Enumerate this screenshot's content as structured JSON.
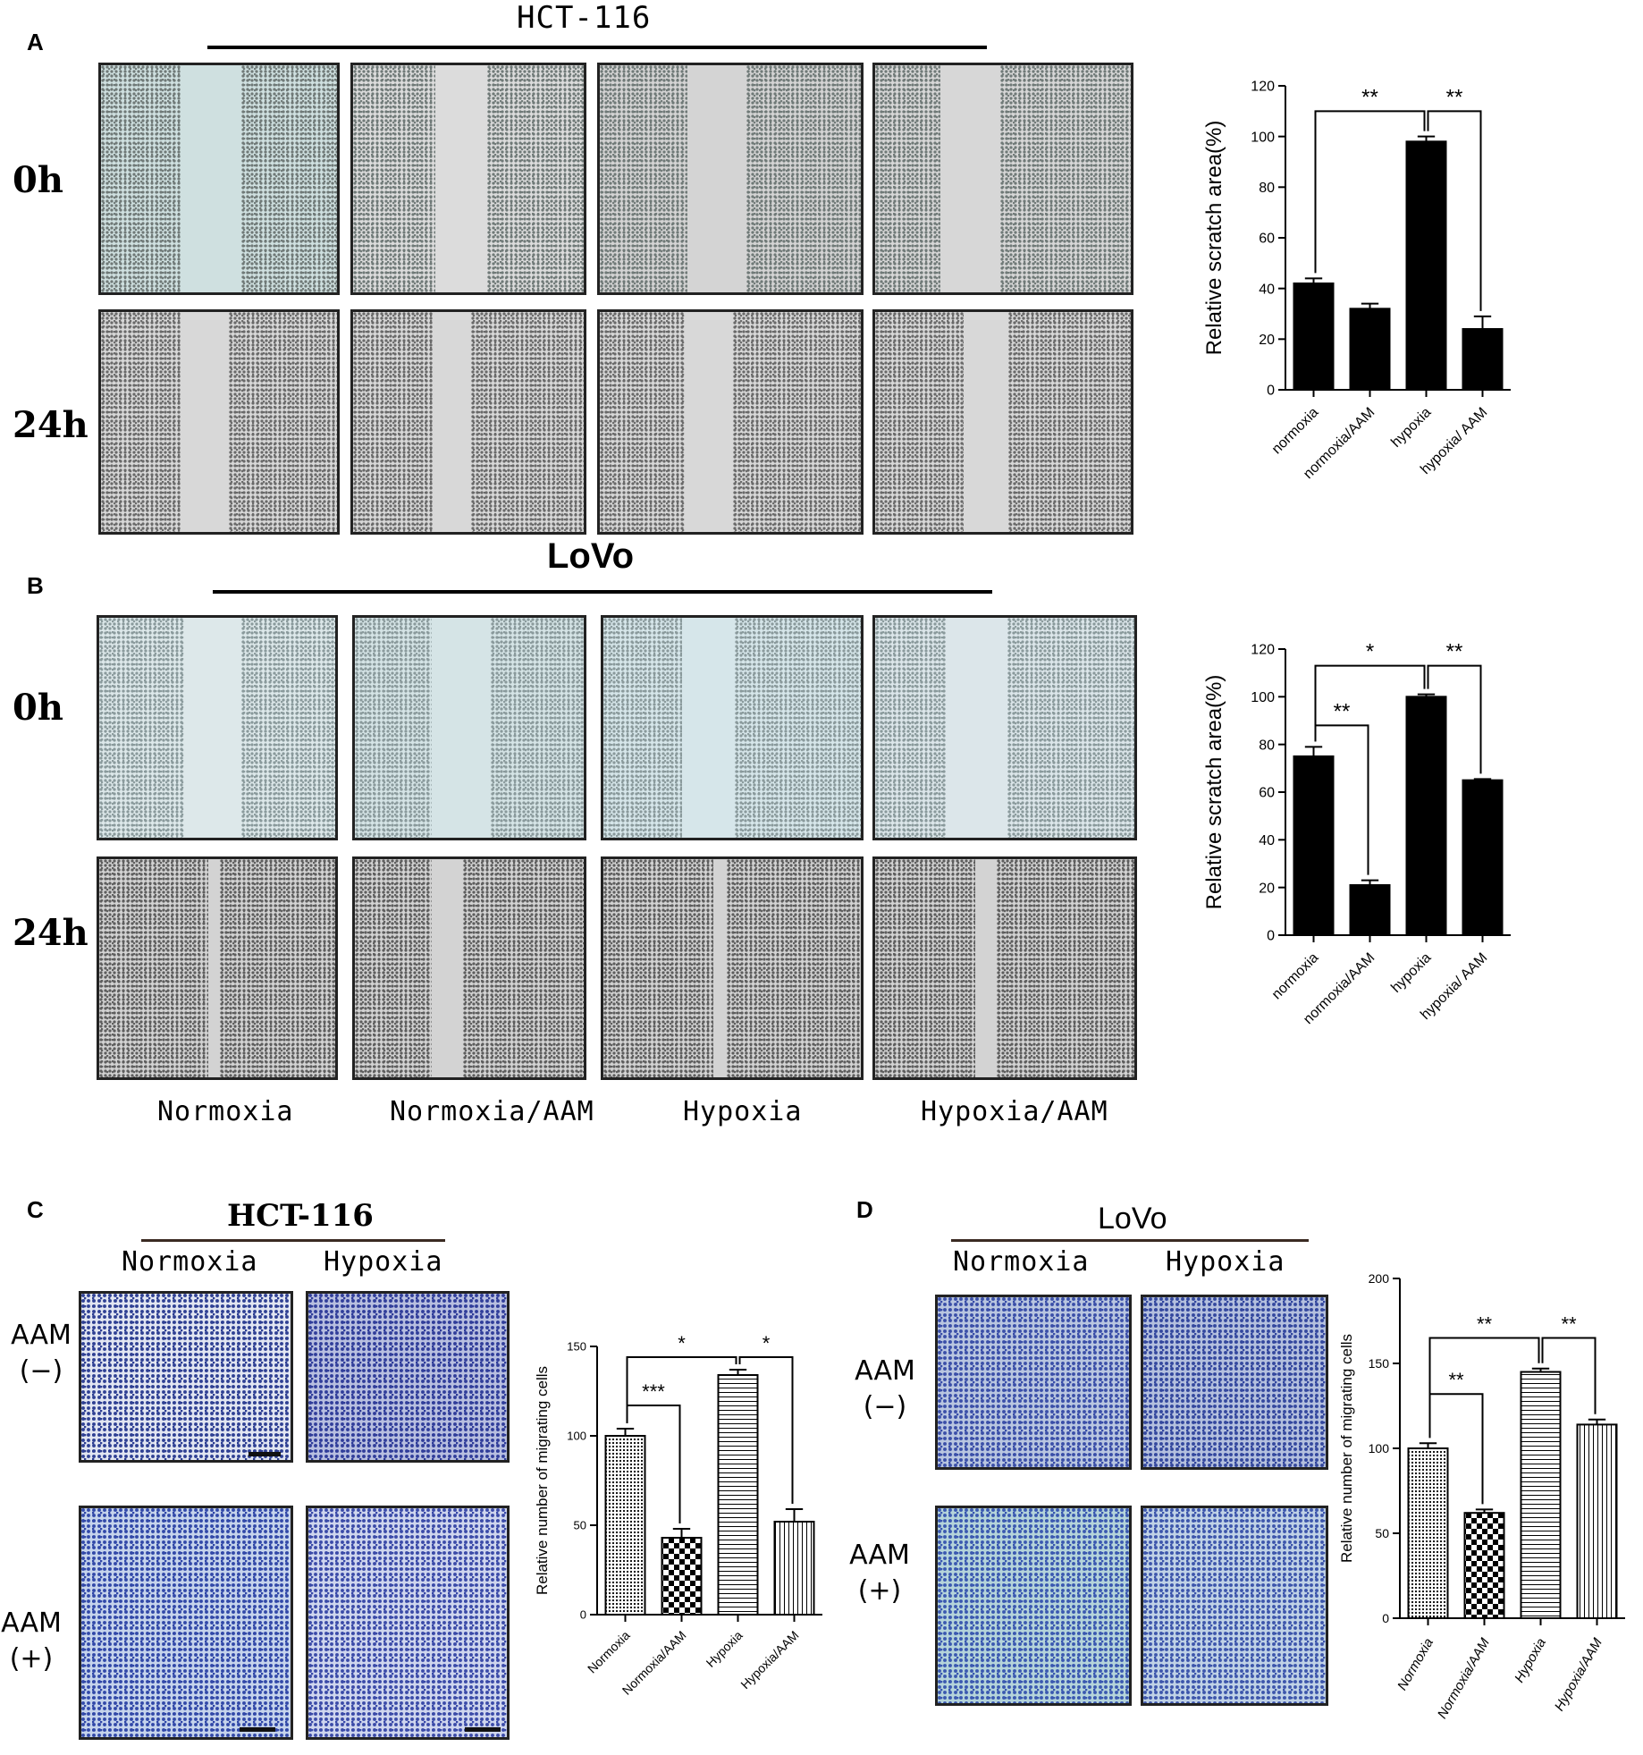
{
  "panels": {
    "A": {
      "letter": "A",
      "title": "HCT-116",
      "rows": [
        "0h",
        "24h"
      ]
    },
    "B": {
      "letter": "B",
      "title": "LoVo",
      "rows": [
        "0h",
        "24h"
      ],
      "conditions": [
        "Normoxia",
        "Normoxia/AAM",
        "Hypoxia",
        "Hypoxia/AAM"
      ]
    },
    "C": {
      "letter": "C",
      "title": "HCT-116",
      "columns": [
        "Normoxia",
        "Hypoxia"
      ],
      "rows": [
        {
          "line1": "AAM",
          "line2": "(−)"
        },
        {
          "line1": "AAM",
          "line2": "(+)"
        }
      ]
    },
    "D": {
      "letter": "D",
      "title": "LoVo",
      "columns": [
        "Normoxia",
        "Hypoxia"
      ],
      "rows": [
        {
          "line1": "AAM",
          "line2": "(−)"
        },
        {
          "line1": "AAM",
          "line2": "(+)"
        }
      ]
    }
  },
  "chart_data": [
    {
      "id": "chartA",
      "type": "bar",
      "categories": [
        "normoxia",
        "normoxia/AAM",
        "hypoxia",
        "hypoxia/ AAM"
      ],
      "values": [
        42,
        32,
        98,
        24
      ],
      "errors": [
        2,
        2,
        2,
        5
      ],
      "ylabel": "Relative scratch area(%)",
      "ylim": [
        0,
        120
      ],
      "yticks": [
        0,
        20,
        40,
        60,
        80,
        100,
        120
      ],
      "patterns": [
        "solid",
        "solid",
        "solid",
        "solid"
      ],
      "significance": [
        {
          "from": 0,
          "to": 2,
          "label": "**",
          "level": 110
        },
        {
          "from": 2,
          "to": 3,
          "label": "**",
          "level": 110
        }
      ]
    },
    {
      "id": "chartB",
      "type": "bar",
      "categories": [
        "normoxia",
        "normoxia/AAM",
        "hypoxia",
        "hypoxia/ AAM"
      ],
      "values": [
        75,
        21,
        100,
        65
      ],
      "errors": [
        4,
        2,
        1,
        0.5
      ],
      "ylabel": "Relative scratch area(%)",
      "ylim": [
        0,
        120
      ],
      "yticks": [
        0,
        20,
        40,
        60,
        80,
        100,
        120
      ],
      "patterns": [
        "solid",
        "solid",
        "solid",
        "solid"
      ],
      "significance": [
        {
          "from": 0,
          "to": 2,
          "label": "*",
          "level": 113
        },
        {
          "from": 2,
          "to": 3,
          "label": "**",
          "level": 113
        },
        {
          "from": 0,
          "to": 1,
          "label": "**",
          "level": 88
        }
      ]
    },
    {
      "id": "chartC",
      "type": "bar",
      "categories": [
        "Normoxia",
        "Normoxia/AAM",
        "Hypoxia",
        "Hypoxia/AAM"
      ],
      "values": [
        100,
        43,
        134,
        52
      ],
      "errors": [
        4,
        5,
        3,
        7
      ],
      "ylabel": "Relative number of migrating cells",
      "ylim": [
        0,
        150
      ],
      "yticks": [
        0,
        50,
        100,
        150
      ],
      "patterns": [
        "dots",
        "checker",
        "hlines",
        "vlines"
      ],
      "significance": [
        {
          "from": 0,
          "to": 2,
          "label": "*",
          "level": 144
        },
        {
          "from": 2,
          "to": 3,
          "label": "*",
          "level": 144
        },
        {
          "from": 0,
          "to": 1,
          "label": "***",
          "level": 117
        }
      ]
    },
    {
      "id": "chartD",
      "type": "bar",
      "categories": [
        "Normoxia",
        "Normoxia/AAM",
        "Hypoxia",
        "Hypoxia/AAM"
      ],
      "values": [
        100,
        62,
        145,
        114
      ],
      "errors": [
        3,
        2,
        2,
        3
      ],
      "ylabel": "Relative number of migrating cells",
      "ylim": [
        0,
        200
      ],
      "yticks": [
        0,
        50,
        100,
        150,
        200
      ],
      "patterns": [
        "dots",
        "checker",
        "hlines",
        "vlines"
      ],
      "significance": [
        {
          "from": 0,
          "to": 2,
          "label": "**",
          "level": 165
        },
        {
          "from": 2,
          "to": 3,
          "label": "**",
          "level": 165
        },
        {
          "from": 0,
          "to": 1,
          "label": "**",
          "level": 132
        }
      ]
    }
  ]
}
